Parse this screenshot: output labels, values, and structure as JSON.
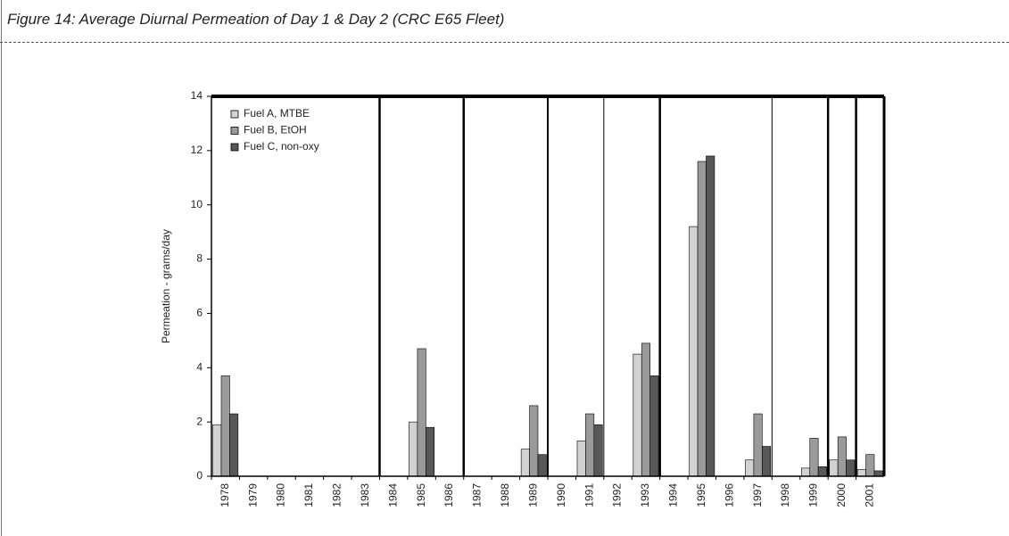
{
  "chart_data": {
    "type": "bar",
    "title": "Figure 14: Average Diurnal Permeation of Day 1 & Day 2 (CRC E65 Fleet)",
    "y_label": "Permeation - grams/day",
    "categories": [
      "1978",
      "1979",
      "1980",
      "1981",
      "1982",
      "1983",
      "1984",
      "1985",
      "1986",
      "1987",
      "1988",
      "1989",
      "1990",
      "1991",
      "1992",
      "1993",
      "1994",
      "1995",
      "1996",
      "1997",
      "1998",
      "1999",
      "2000",
      "2001"
    ],
    "series": [
      {
        "name": "Fuel A, MTBE",
        "color": "#d2d2d2",
        "values": [
          1.9,
          null,
          null,
          null,
          null,
          null,
          null,
          2.0,
          null,
          null,
          null,
          1.0,
          null,
          1.3,
          null,
          4.5,
          null,
          9.2,
          null,
          0.6,
          null,
          0.3,
          0.6,
          0.25
        ]
      },
      {
        "name": "Fuel B, EtOH",
        "color": "#9a9a9a",
        "values": [
          3.7,
          null,
          null,
          null,
          null,
          null,
          null,
          4.7,
          null,
          null,
          null,
          2.6,
          null,
          2.3,
          null,
          4.9,
          null,
          11.6,
          null,
          2.3,
          null,
          1.4,
          1.45,
          0.8
        ]
      },
      {
        "name": "Fuel C, non-oxy",
        "color": "#585858",
        "values": [
          2.3,
          null,
          null,
          null,
          null,
          null,
          null,
          1.8,
          null,
          null,
          null,
          0.8,
          null,
          1.9,
          null,
          3.7,
          null,
          11.8,
          null,
          1.1,
          null,
          0.35,
          0.6,
          0.2
        ]
      }
    ],
    "ylim": [
      0,
      14
    ],
    "yticks": [
      0,
      2,
      4,
      6,
      8,
      10,
      12,
      14
    ],
    "legend": "upper left"
  }
}
